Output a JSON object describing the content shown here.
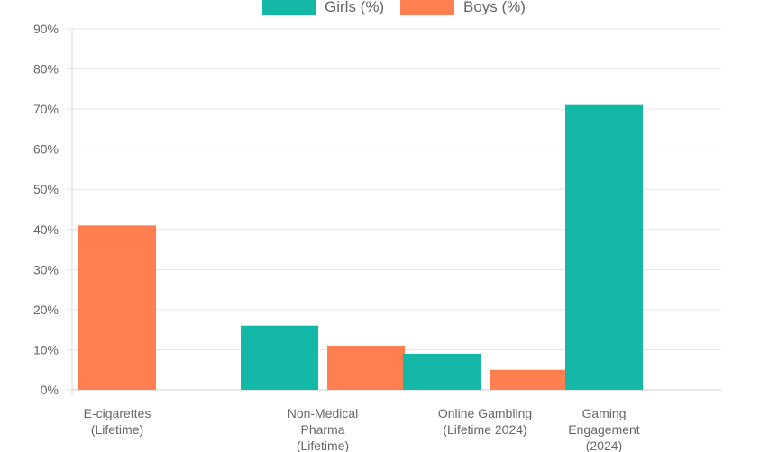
{
  "chart_data": {
    "type": "bar",
    "categories": [
      [
        "E-cigarettes",
        "(Lifetime)"
      ],
      [
        "Non-Medical",
        "Pharma",
        "(Lifetime)"
      ],
      [
        "Online Gambling",
        "(Lifetime 2024)"
      ],
      [
        "Gaming",
        "Engagement",
        "(2024)"
      ]
    ],
    "series": [
      {
        "name": "Girls (%)",
        "color": "#14b8a6",
        "values": [
          null,
          16,
          9,
          71
        ]
      },
      {
        "name": "Boys (%)",
        "color": "#ff7f50",
        "values": [
          41,
          11,
          5,
          null
        ]
      }
    ],
    "ylim": [
      0,
      90
    ],
    "yticks": [
      0,
      10,
      20,
      30,
      40,
      50,
      60,
      70,
      80,
      90
    ],
    "ytick_suffix": "%",
    "grid": true,
    "legend_position": "top"
  }
}
